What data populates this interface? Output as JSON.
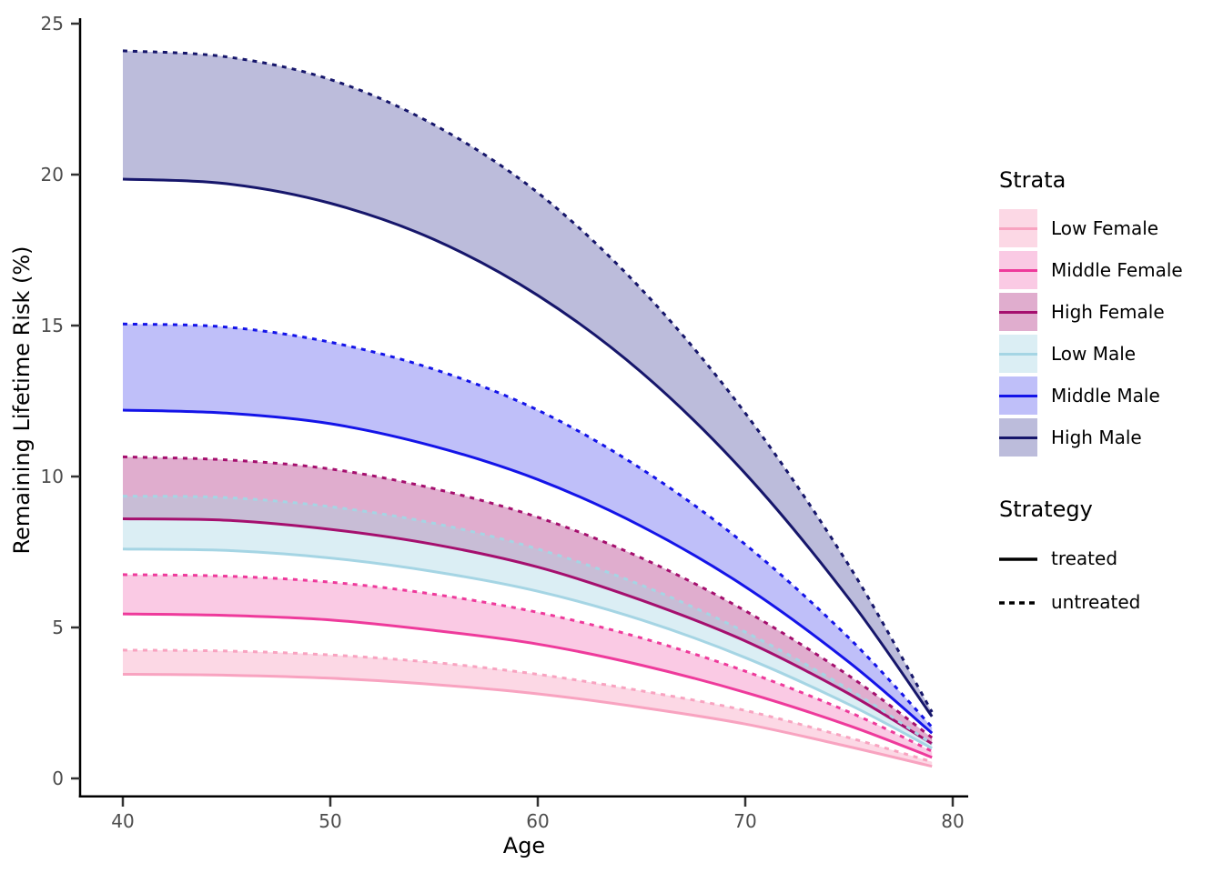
{
  "chart_data": {
    "type": "line",
    "xlabel": "Age",
    "ylabel": "Remaining Lifetime Risk (%)",
    "x_ticks": [
      40,
      50,
      60,
      70,
      80
    ],
    "y_ticks": [
      0,
      5,
      10,
      15,
      20,
      25
    ],
    "xlim": [
      38,
      81
    ],
    "ylim": [
      0,
      25
    ],
    "grid": "off",
    "legend_position": "right",
    "ages": [
      40,
      45,
      50,
      55,
      60,
      65,
      70,
      75,
      79
    ],
    "strata": [
      {
        "name": "Low Female",
        "line_color": "#F8A3C0",
        "fill_color": "rgba(248,163,192,0.42)",
        "treated": [
          3.45,
          3.42,
          3.32,
          3.11,
          2.8,
          2.35,
          1.8,
          1.05,
          0.4
        ],
        "untreated": [
          4.25,
          4.22,
          4.09,
          3.84,
          3.45,
          2.9,
          2.25,
          1.35,
          0.55
        ]
      },
      {
        "name": "Middle Female",
        "line_color": "#EE3A9B",
        "fill_color": "rgba(238,58,155,0.27)",
        "treated": [
          5.45,
          5.4,
          5.25,
          4.9,
          4.45,
          3.75,
          2.85,
          1.75,
          0.7
        ],
        "untreated": [
          6.75,
          6.7,
          6.5,
          6.1,
          5.5,
          4.65,
          3.55,
          2.2,
          0.9
        ]
      },
      {
        "name": "High Female",
        "line_color": "#A50F6E",
        "fill_color": "rgba(165,15,110,0.34)",
        "treated": [
          8.6,
          8.55,
          8.25,
          7.75,
          7.0,
          5.9,
          4.55,
          2.8,
          1.15
        ],
        "untreated": [
          10.65,
          10.55,
          10.25,
          9.6,
          8.65,
          7.3,
          5.55,
          3.4,
          1.35
        ]
      },
      {
        "name": "Low Male",
        "line_color": "#A5D5E4",
        "fill_color": "rgba(165,213,228,0.40)",
        "treated": [
          7.6,
          7.55,
          7.3,
          6.85,
          6.2,
          5.25,
          4.0,
          2.45,
          1.0
        ],
        "untreated": [
          9.35,
          9.3,
          9.0,
          8.45,
          7.6,
          6.4,
          4.85,
          2.95,
          1.15
        ]
      },
      {
        "name": "Middle Male",
        "line_color": "#1414E8",
        "fill_color": "rgba(20,20,232,0.27)",
        "treated": [
          12.2,
          12.1,
          11.75,
          11.0,
          9.9,
          8.35,
          6.35,
          3.85,
          1.5
        ],
        "untreated": [
          15.05,
          14.95,
          14.45,
          13.55,
          12.2,
          10.25,
          7.75,
          4.65,
          1.7
        ]
      },
      {
        "name": "High Male",
        "line_color": "#16166B",
        "fill_color": "rgba(40,40,140,0.31)",
        "treated": [
          19.85,
          19.7,
          19.05,
          17.85,
          16.0,
          13.45,
          10.1,
          5.95,
          2.05
        ],
        "untreated": [
          24.1,
          23.9,
          23.15,
          21.65,
          19.4,
          16.2,
          12.1,
          7.05,
          2.2
        ]
      }
    ],
    "legend": {
      "strata_title": "Strata",
      "strategy_title": "Strategy",
      "strategies": [
        {
          "label": "treated",
          "dashed": false
        },
        {
          "label": "untreated",
          "dashed": true
        }
      ]
    }
  }
}
